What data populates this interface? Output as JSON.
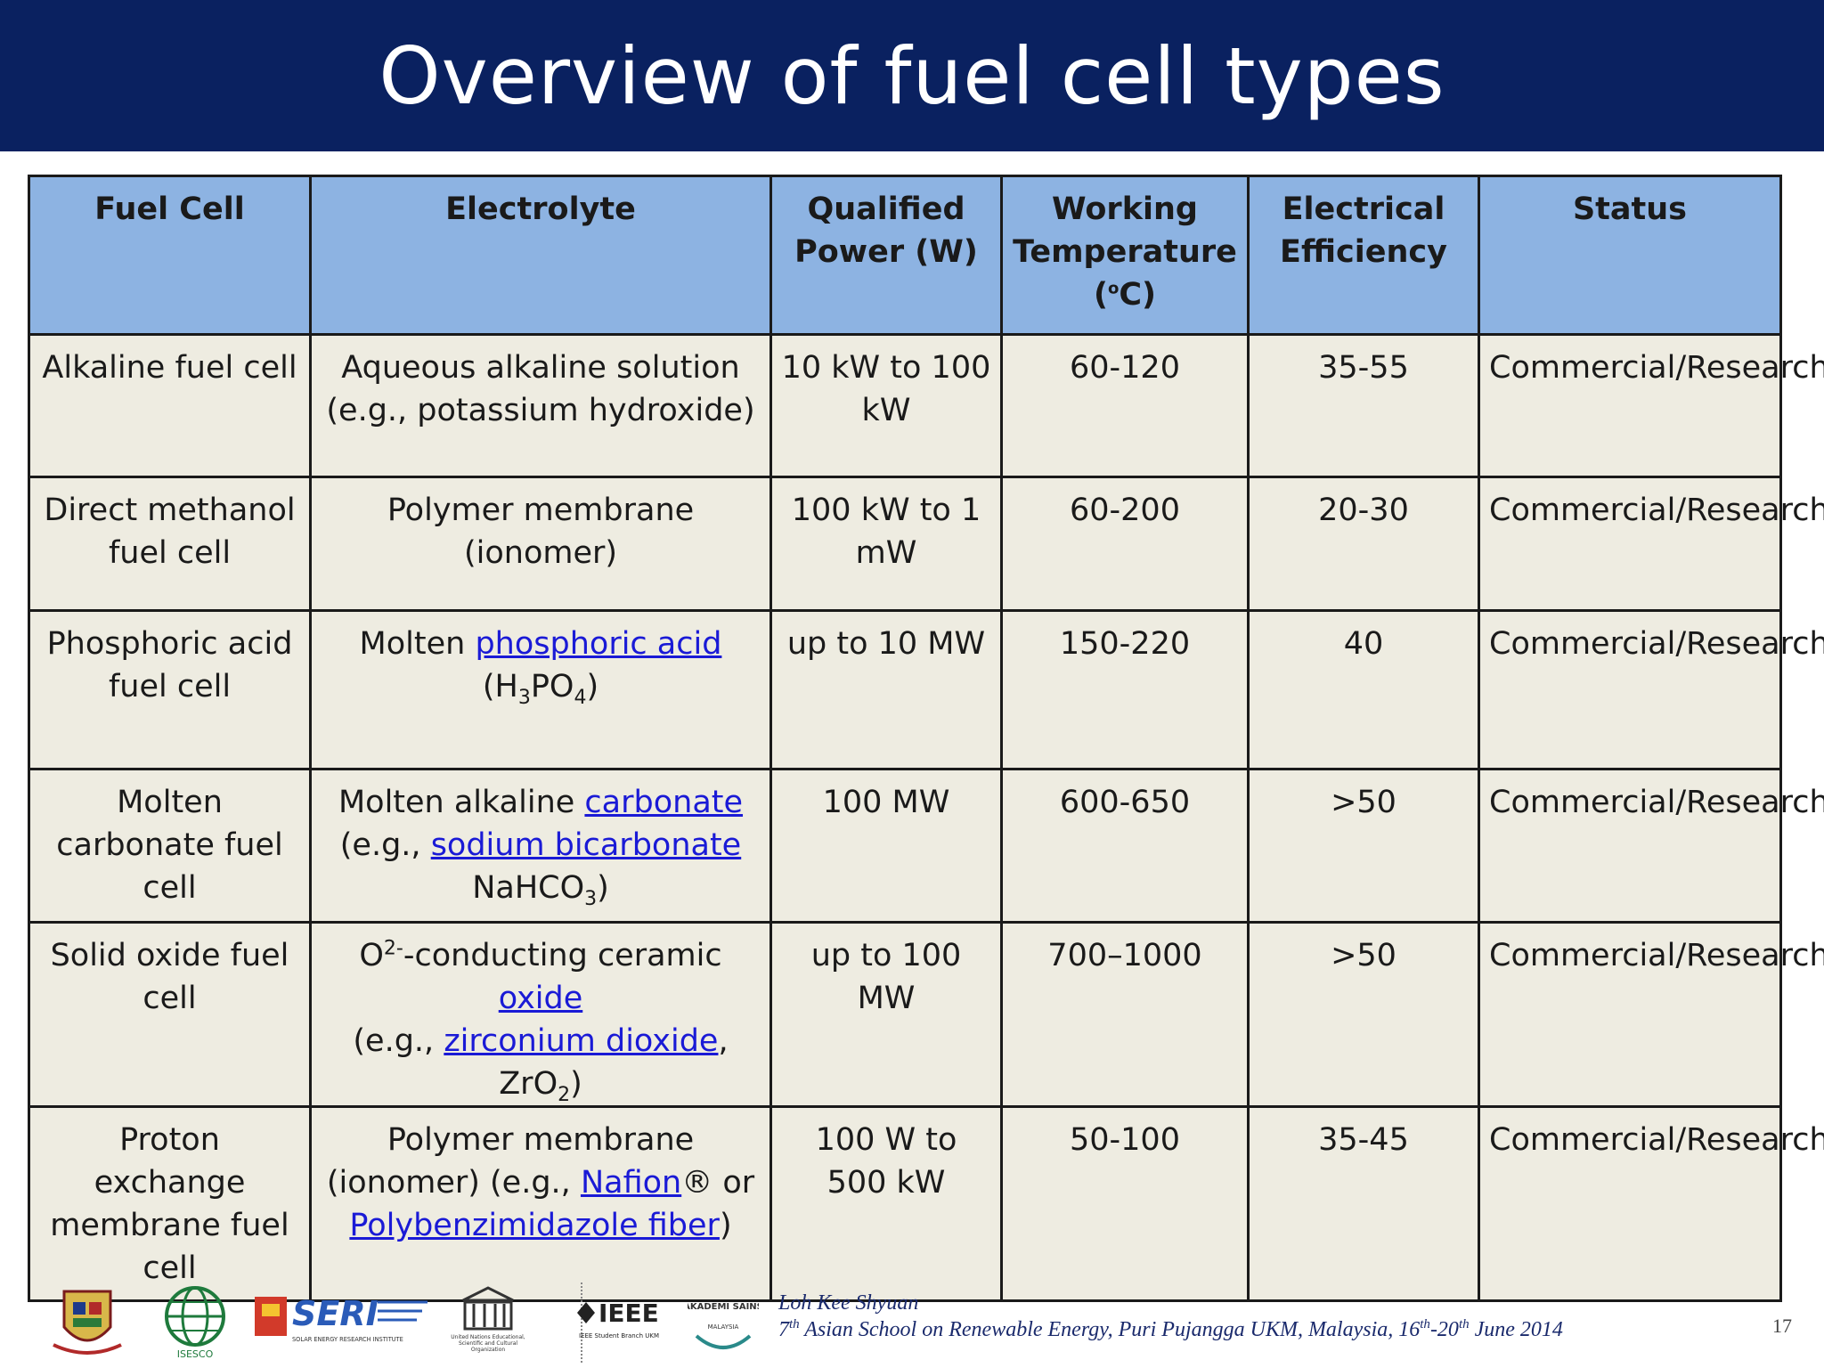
{
  "slide": {
    "title": "Overview of fuel cell types",
    "page_number": "17"
  },
  "table": {
    "headers": {
      "fuel_cell": "Fuel Cell",
      "electrolyte": "Electrolyte",
      "power_line1": "Qualified",
      "power_line2": "Power  (W)",
      "temp_line1": "Working",
      "temp_line2": "Temperature",
      "temp_line3": "(",
      "temp_degree": "o",
      "temp_line3_end": "C)",
      "eff_line1": "Electrical",
      "eff_line2": "Efficiency",
      "status": "Status"
    },
    "rows": [
      {
        "fuel_cell": "Alkaline fuel cell",
        "electrolyte_line1": "Aqueous alkaline solution",
        "electrolyte_line2": "(e.g., potassium hydroxide)",
        "power": "10 kW to 100 kW",
        "temperature": "60-120",
        "efficiency": "35-55",
        "status": "Commercial/Research"
      },
      {
        "fuel_cell": "Direct methanol fuel cell",
        "electrolyte_line1": "Polymer membrane",
        "electrolyte_line2": "(ionomer)",
        "power": "100 kW to 1 mW",
        "temperature": "60-200",
        "efficiency": "20-30",
        "status": "Commercial/Research"
      },
      {
        "fuel_cell": "Phosphoric acid fuel cell",
        "electrolyte_prefix": "Molten ",
        "electrolyte_link": "phosphoric acid",
        "formula_open": "(H",
        "formula_sub1": "3",
        "formula_mid": "PO",
        "formula_sub2": "4",
        "formula_close": ")",
        "power": "up to 10 MW",
        "temperature": "150-220",
        "efficiency": "40",
        "status": "Commercial/Research"
      },
      {
        "fuel_cell": "Molten carbonate fuel cell",
        "electrolyte_prefix": "Molten alkaline ",
        "electrolyte_link": "carbonate",
        "eg_prefix": "(e.g., ",
        "eg_link": "sodium bicarbonate",
        "formula_main": "NaHCO",
        "formula_sub": "3",
        "formula_close": ")",
        "power": "100 MW",
        "temperature": "600-650",
        "efficiency": ">50",
        "status": "Commercial/Research"
      },
      {
        "fuel_cell": "Solid oxide fuel cell",
        "ion": "O",
        "ion_charge": "2-",
        "electrolyte_mid": "-conducting ceramic ",
        "electrolyte_link": "oxide",
        "eg_prefix": "(e.g., ",
        "eg_link": "zirconium dioxide",
        "eg_suffix": ",",
        "formula_main": "ZrO",
        "formula_sub": "2",
        "formula_close": ")",
        "power": "up to 100 MW",
        "temperature": "700–1000",
        "efficiency": ">50",
        "status": "Commercial/Research"
      },
      {
        "fuel_cell": "Proton exchange membrane fuel cell",
        "electrolyte_line1": "Polymer membrane",
        "eg_prefix": "(ionomer) (e.g., ",
        "eg_link": "Nafion",
        "eg_suffix": "® or",
        "link2": "Polybenzimidazole fiber",
        "close": ")",
        "power": "100 W to 500 kW",
        "temperature": "50-100",
        "efficiency": "35-45",
        "status": "Commercial/Research"
      }
    ]
  },
  "footer": {
    "author": "Loh Kee Shyuan",
    "event_num": "7",
    "event_num_sup": "th",
    "event_text": " Asian School on Renewable Energy, Puri Pujangga UKM, Malaysia, 16",
    "event_sup1": "th",
    "event_dash": "-20",
    "event_sup2": "th",
    "event_end": " June 2014",
    "logos": {
      "ieee": "IEEE",
      "ieee_sub": "IEEE Student Branch UKM",
      "seri": "SERI",
      "seri_sub": "SOLAR ENERGY RESEARCH INSTITUTE",
      "akademi": "AKADEMI SAINS",
      "akademi_sub": "MALAYSIA",
      "isesco": "ISESCO",
      "unesco_sub": "United Nations Educational, Scientific and Cultural Organization"
    }
  },
  "colors": {
    "title_bar": "#0a2160",
    "header_fill": "#8db3e2",
    "cell_fill": "#eeece1",
    "link": "#1a1ad6"
  }
}
